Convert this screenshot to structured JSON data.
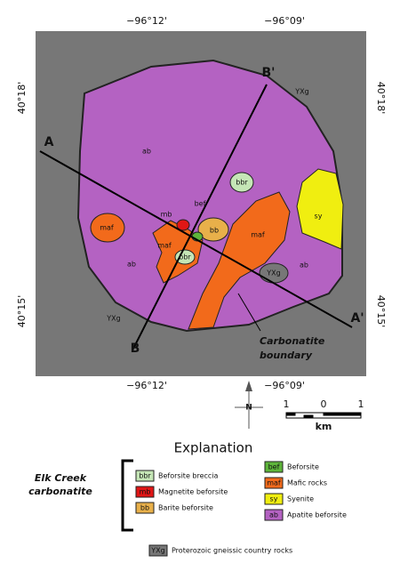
{
  "coords": {
    "top": [
      "−96°12'",
      "−96°09'"
    ],
    "bottom": [
      "−96°12'",
      "−96°09'"
    ],
    "left": [
      "40°18'",
      "40°15'"
    ],
    "right": [
      "40°18'",
      "40°15'"
    ]
  },
  "map_labels": {
    "units": [
      "ab",
      "ab",
      "ab",
      "maf",
      "maf",
      "maf",
      "mb",
      "bef",
      "bbr",
      "bbr",
      "bb",
      "sy",
      "YXg",
      "YXg",
      "YXg"
    ],
    "sections": [
      "A",
      "A'",
      "B",
      "B'"
    ],
    "boundary": [
      "Carbonatite",
      "boundary"
    ]
  },
  "scale": {
    "ticks": [
      "1",
      "0",
      "1"
    ],
    "unit": "km"
  },
  "north": "N",
  "legend": {
    "title": "Explanation",
    "group": [
      "Elk Creek",
      "carbonatite"
    ],
    "items": [
      {
        "code": "bbr",
        "label": "Beforsite breccia"
      },
      {
        "code": "mb",
        "label": "Magnetite beforsite"
      },
      {
        "code": "bb",
        "label": "Barite beforsite"
      },
      {
        "code": "bef",
        "label": "Beforsite"
      },
      {
        "code": "maf",
        "label": "Mafic rocks"
      },
      {
        "code": "sy",
        "label": "Syenite"
      },
      {
        "code": "ab",
        "label": "Apatite beforsite"
      },
      {
        "code": "YXg",
        "label": "Proterozoic gneissic country rocks"
      }
    ]
  }
}
